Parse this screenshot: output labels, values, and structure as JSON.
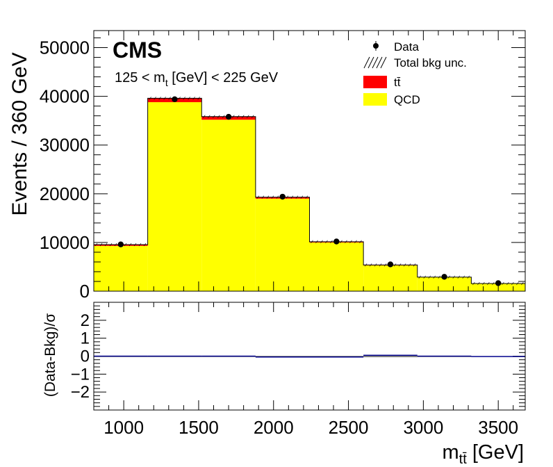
{
  "chart_data": {
    "type": "bar",
    "experiment": "CMS",
    "selection": {
      "left": "125 < m",
      "sub": "t",
      "right": " [GeV] < 225 GeV"
    },
    "ylabel": "Events / 360 GeV",
    "xlabel_main": "m",
    "xlabel_sub": "tt̄",
    "xlabel_unit": " [GeV]",
    "xlim": [
      800,
      3680
    ],
    "ylim": [
      0,
      53500
    ],
    "xticks": [
      "1000",
      "1500",
      "2000",
      "2500",
      "3000",
      "3500"
    ],
    "yticks": [
      "0",
      "10000",
      "20000",
      "30000",
      "40000",
      "50000"
    ],
    "bin_edges": [
      800,
      1160,
      1520,
      1880,
      2240,
      2600,
      2960,
      3320,
      3680
    ],
    "series": [
      {
        "name": "QCD",
        "color": "#ffff00",
        "values": [
          9300,
          38800,
          35200,
          19000,
          10000,
          5300,
          2850,
          1550
        ]
      },
      {
        "name": "tt̄",
        "color": "#ff0000",
        "values": [
          250,
          800,
          650,
          300,
          150,
          80,
          40,
          20
        ]
      }
    ],
    "data_points": {
      "name": "Data",
      "x": [
        980,
        1340,
        1700,
        2060,
        2420,
        2780,
        3140,
        3500
      ],
      "y": [
        9600,
        39400,
        35800,
        19400,
        10200,
        5500,
        2950,
        1650
      ]
    },
    "legend": {
      "placement": "top-right",
      "entries": [
        "Data",
        "Total bkg unc.",
        "tt̄",
        "QCD"
      ]
    },
    "ratio_panel": {
      "ylabel": "(Data-Bkg)/σ",
      "ylim": [
        -3,
        3
      ],
      "yticks": [
        "2",
        "1",
        "0",
        "−1",
        "−2"
      ],
      "ytick_values": [
        2,
        1,
        0,
        -1,
        -2
      ],
      "values": [
        0.0,
        0.0,
        0.0,
        -0.05,
        -0.05,
        0.05,
        0.0,
        -0.02
      ],
      "line_color": "#00008b"
    }
  }
}
